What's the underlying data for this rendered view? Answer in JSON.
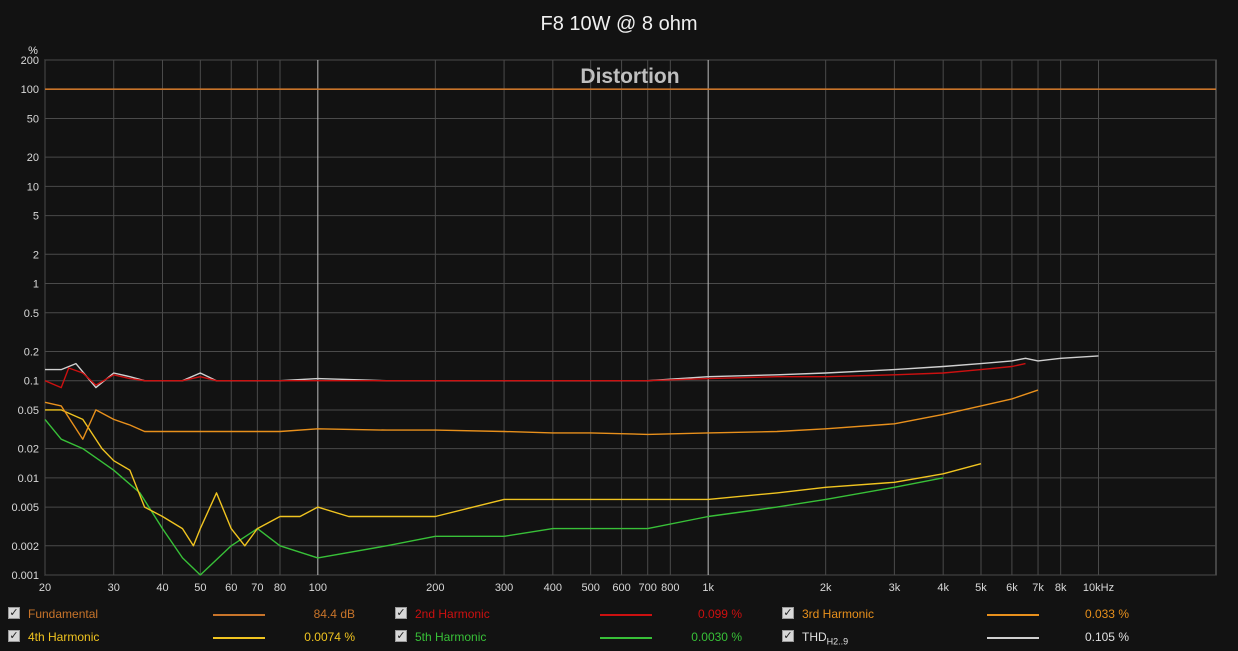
{
  "chart_data": {
    "type": "line",
    "title": "F8 10W @ 8 ohm",
    "subtitle": "Distortion",
    "ylabel": "%",
    "xlabel": "",
    "y_scale": "log",
    "x_scale": "log",
    "xlim": [
      20,
      20000
    ],
    "ylim": [
      0.001,
      200
    ],
    "x_ticks": [
      {
        "v": 20,
        "label": "20"
      },
      {
        "v": 30,
        "label": "30"
      },
      {
        "v": 40,
        "label": "40"
      },
      {
        "v": 50,
        "label": "50"
      },
      {
        "v": 60,
        "label": "60"
      },
      {
        "v": 70,
        "label": "70"
      },
      {
        "v": 80,
        "label": "80"
      },
      {
        "v": 100,
        "label": "100"
      },
      {
        "v": 200,
        "label": "200"
      },
      {
        "v": 300,
        "label": "300"
      },
      {
        "v": 400,
        "label": "400"
      },
      {
        "v": 500,
        "label": "500"
      },
      {
        "v": 600,
        "label": "600"
      },
      {
        "v": 700,
        "label": "700"
      },
      {
        "v": 800,
        "label": "800"
      },
      {
        "v": 1000,
        "label": "1k"
      },
      {
        "v": 2000,
        "label": "2k"
      },
      {
        "v": 3000,
        "label": "3k"
      },
      {
        "v": 4000,
        "label": "4k"
      },
      {
        "v": 5000,
        "label": "5k"
      },
      {
        "v": 6000,
        "label": "6k"
      },
      {
        "v": 7000,
        "label": "7k"
      },
      {
        "v": 8000,
        "label": "8k"
      },
      {
        "v": 10000,
        "label": "10kHz"
      }
    ],
    "y_ticks": [
      {
        "v": 200,
        "label": "200"
      },
      {
        "v": 100,
        "label": "100"
      },
      {
        "v": 50,
        "label": "50"
      },
      {
        "v": 20,
        "label": "20"
      },
      {
        "v": 10,
        "label": "10"
      },
      {
        "v": 5,
        "label": "5"
      },
      {
        "v": 2,
        "label": "2"
      },
      {
        "v": 1,
        "label": "1"
      },
      {
        "v": 0.5,
        "label": "0.5"
      },
      {
        "v": 0.2,
        "label": "0.2"
      },
      {
        "v": 0.1,
        "label": "0.1"
      },
      {
        "v": 0.05,
        "label": "0.05"
      },
      {
        "v": 0.02,
        "label": "0.02"
      },
      {
        "v": 0.01,
        "label": "0.01"
      },
      {
        "v": 0.005,
        "label": "0.005"
      },
      {
        "v": 0.002,
        "label": "0.002"
      },
      {
        "v": 0.001,
        "label": "0.001"
      }
    ],
    "grid": true,
    "legend_position": "bottom",
    "series": [
      {
        "name": "Fundamental",
        "color": "#c8742a",
        "display_value": "84.4 dB",
        "x": [
          20,
          20000
        ],
        "y": [
          100,
          100
        ]
      },
      {
        "name": "2nd Harmonic",
        "color": "#cc1010",
        "display_value": "0.099 %",
        "x": [
          20,
          22,
          23,
          25,
          27,
          30,
          33,
          36,
          40,
          45,
          50,
          55,
          60,
          70,
          80,
          100,
          150,
          200,
          300,
          400,
          500,
          700,
          1000,
          1500,
          2000,
          3000,
          4000,
          5000,
          6000,
          6500
        ],
        "y": [
          0.1,
          0.085,
          0.135,
          0.12,
          0.09,
          0.115,
          0.105,
          0.1,
          0.1,
          0.1,
          0.11,
          0.1,
          0.1,
          0.1,
          0.1,
          0.1,
          0.1,
          0.1,
          0.1,
          0.1,
          0.1,
          0.1,
          0.105,
          0.11,
          0.11,
          0.115,
          0.12,
          0.13,
          0.14,
          0.15
        ]
      },
      {
        "name": "3rd Harmonic",
        "color": "#e8901c",
        "display_value": "0.033 %",
        "x": [
          20,
          22,
          25,
          27,
          30,
          33,
          36,
          40,
          45,
          50,
          60,
          70,
          80,
          100,
          150,
          200,
          300,
          400,
          500,
          700,
          1000,
          1500,
          2000,
          3000,
          4000,
          5000,
          6000,
          7000
        ],
        "y": [
          0.06,
          0.055,
          0.025,
          0.05,
          0.04,
          0.035,
          0.03,
          0.03,
          0.03,
          0.03,
          0.03,
          0.03,
          0.03,
          0.032,
          0.031,
          0.031,
          0.03,
          0.029,
          0.029,
          0.028,
          0.029,
          0.03,
          0.032,
          0.036,
          0.045,
          0.055,
          0.065,
          0.08
        ]
      },
      {
        "name": "4th Harmonic",
        "color": "#f0c420",
        "display_value": "0.0074 %",
        "x": [
          20,
          22,
          25,
          28,
          30,
          33,
          36,
          40,
          45,
          48,
          50,
          55,
          60,
          65,
          70,
          80,
          90,
          100,
          120,
          150,
          200,
          250,
          300,
          400,
          500,
          700,
          1000,
          1500,
          2000,
          3000,
          4000,
          5000
        ],
        "y": [
          0.05,
          0.05,
          0.04,
          0.02,
          0.015,
          0.012,
          0.005,
          0.004,
          0.003,
          0.002,
          0.003,
          0.007,
          0.003,
          0.002,
          0.003,
          0.004,
          0.004,
          0.005,
          0.004,
          0.004,
          0.004,
          0.005,
          0.006,
          0.006,
          0.006,
          0.006,
          0.006,
          0.007,
          0.008,
          0.009,
          0.011,
          0.014
        ]
      },
      {
        "name": "5th Harmonic",
        "color": "#38c038",
        "display_value": "0.0030 %",
        "x": [
          20,
          22,
          25,
          30,
          35,
          40,
          45,
          50,
          60,
          70,
          80,
          100,
          150,
          200,
          300,
          400,
          500,
          700,
          1000,
          1500,
          2000,
          3000,
          4000
        ],
        "y": [
          0.04,
          0.025,
          0.02,
          0.012,
          0.007,
          0.003,
          0.0015,
          0.001,
          0.002,
          0.003,
          0.002,
          0.0015,
          0.002,
          0.0025,
          0.0025,
          0.003,
          0.003,
          0.003,
          0.004,
          0.005,
          0.006,
          0.008,
          0.01
        ]
      },
      {
        "name": "THDH2..9",
        "color": "#d0d0d0",
        "display_value": "0.105 %",
        "x": [
          20,
          22,
          24,
          27,
          30,
          33,
          36,
          40,
          45,
          50,
          55,
          60,
          70,
          80,
          100,
          150,
          200,
          300,
          400,
          500,
          700,
          1000,
          1500,
          2000,
          3000,
          4000,
          5000,
          6000,
          6500,
          7000,
          8000,
          10000
        ],
        "y": [
          0.13,
          0.13,
          0.15,
          0.085,
          0.12,
          0.11,
          0.1,
          0.1,
          0.1,
          0.12,
          0.1,
          0.1,
          0.1,
          0.1,
          0.105,
          0.1,
          0.1,
          0.1,
          0.1,
          0.1,
          0.1,
          0.11,
          0.115,
          0.12,
          0.13,
          0.14,
          0.15,
          0.16,
          0.17,
          0.16,
          0.17,
          0.18
        ]
      }
    ]
  },
  "legend": [
    {
      "checked": "✓",
      "name": "Fundamental",
      "value": "84.4 dB",
      "color": "#c8742a",
      "text_color": "#c8742a"
    },
    {
      "checked": "✓",
      "name": "2nd Harmonic",
      "value": "0.099 %",
      "color": "#cc1010",
      "text_color": "#cc1010"
    },
    {
      "checked": "✓",
      "name": "3rd Harmonic",
      "value": "0.033 %",
      "color": "#e8901c",
      "text_color": "#e8901c"
    },
    {
      "checked": "✓",
      "name": "4th Harmonic",
      "value": "0.0074 %",
      "color": "#f0c420",
      "text_color": "#f0c420"
    },
    {
      "checked": "✓",
      "name": "5th Harmonic",
      "value": "0.0030 %",
      "color": "#38c038",
      "text_color": "#38c038"
    },
    {
      "checked": "✓",
      "name_main": "THD",
      "name_sub": "H2..9",
      "value": "0.105 %",
      "color": "#d0d0d0",
      "text_color": "#e0e0e0"
    }
  ]
}
